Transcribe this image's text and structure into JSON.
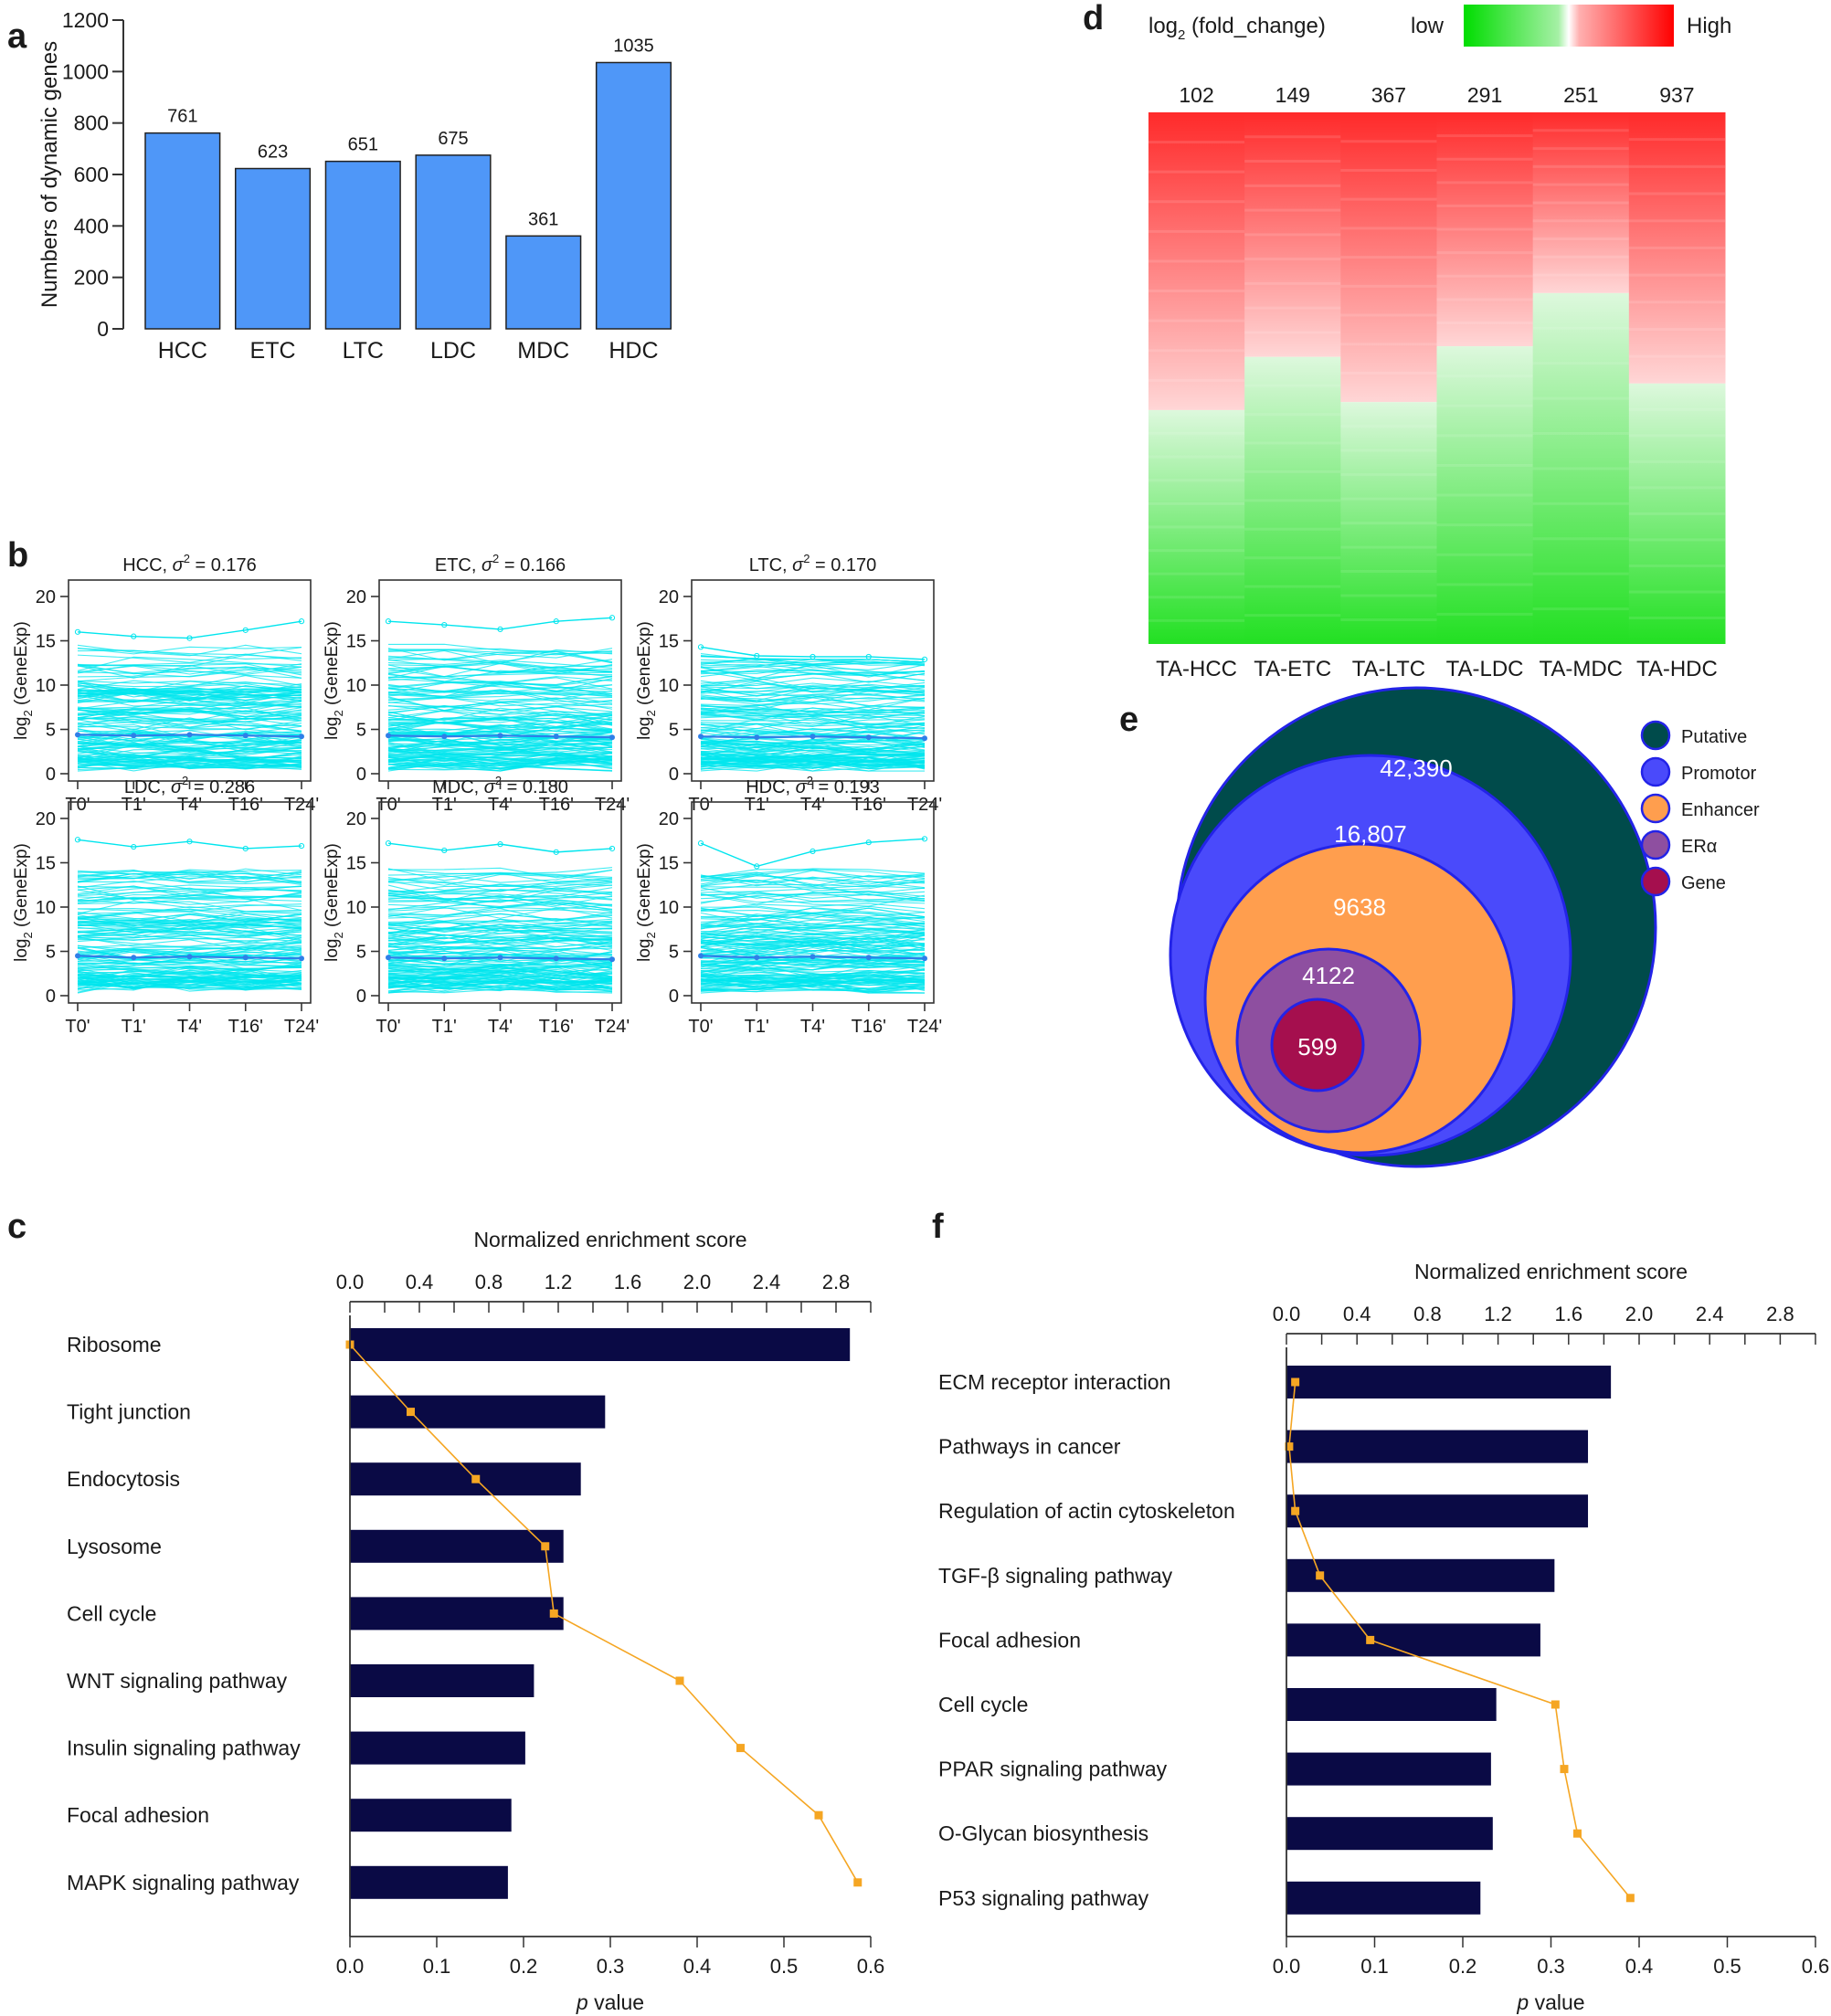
{
  "panel_labels": [
    "a",
    "b",
    "c",
    "d",
    "e",
    "f"
  ],
  "chart_data": [
    {
      "id": "a",
      "type": "bar",
      "ylabel": "Numbers of dynamic genes",
      "categories": [
        "HCC",
        "ETC",
        "LTC",
        "LDC",
        "MDC",
        "HDC"
      ],
      "values": [
        761,
        623,
        651,
        675,
        361,
        1035
      ],
      "ylim": [
        0,
        1200
      ],
      "yticks": [
        0,
        200,
        400,
        600,
        800,
        1000,
        1200
      ],
      "bar_color": "#4F97F8"
    },
    {
      "id": "b",
      "type": "line",
      "x": [
        "T0'",
        "T1'",
        "T4'",
        "T16'",
        "T24'"
      ],
      "ylabel_main": "log",
      "ylabel_sub": "2",
      "ylabel_rest": " (GeneExp)",
      "ylim": [
        0,
        20
      ],
      "yticks": [
        0,
        5,
        10,
        15,
        20
      ],
      "line_color": "#00E5EE",
      "mean_color": "#2F7FE8",
      "panels": [
        {
          "name": "HCC",
          "sigma_label": "σ",
          "sigma_sup": "2",
          "variance": "= 0.176",
          "mean": [
            4.4,
            4.3,
            4.4,
            4.3,
            4.2
          ],
          "max": [
            16.0,
            15.5,
            15.3,
            16.2,
            17.2
          ]
        },
        {
          "name": "ETC",
          "sigma_label": "σ",
          "sigma_sup": "2",
          "variance": "= 0.166",
          "mean": [
            4.3,
            4.2,
            4.3,
            4.2,
            4.1
          ],
          "max": [
            17.2,
            16.8,
            16.3,
            17.2,
            17.6
          ]
        },
        {
          "name": "LTC",
          "sigma_label": "σ",
          "sigma_sup": "2",
          "variance": "= 0.170",
          "mean": [
            4.2,
            4.1,
            4.2,
            4.1,
            4.0
          ],
          "max": [
            14.3,
            13.3,
            13.2,
            13.2,
            12.9
          ]
        },
        {
          "name": "LDC",
          "sigma_label": "σ",
          "sigma_sup": "2",
          "variance": "= 0.286",
          "mean": [
            4.5,
            4.3,
            4.4,
            4.3,
            4.2
          ],
          "max": [
            17.6,
            16.8,
            17.4,
            16.6,
            16.9
          ]
        },
        {
          "name": "MDC",
          "sigma_label": "σ",
          "sigma_sup": "2",
          "variance": "= 0.180",
          "mean": [
            4.3,
            4.2,
            4.3,
            4.2,
            4.1
          ],
          "max": [
            17.2,
            16.4,
            17.1,
            16.2,
            16.6
          ]
        },
        {
          "name": "HDC",
          "sigma_label": "σ",
          "sigma_sup": "2",
          "variance": "= 0.193",
          "mean": [
            4.5,
            4.3,
            4.4,
            4.3,
            4.2
          ],
          "max": [
            17.2,
            14.6,
            16.3,
            17.3,
            17.7
          ]
        }
      ]
    },
    {
      "id": "c",
      "type": "bar",
      "orientation": "horizontal",
      "top_axis_title": "Normalized enrichment score",
      "top_ticks": [
        0.0,
        0.4,
        0.8,
        1.2,
        1.6,
        2.0,
        2.4,
        2.8
      ],
      "top_tick_labels": [
        "0.0",
        "0.4",
        "0.8",
        "1.2",
        "1.6",
        "2.0",
        "2.4",
        "2.8"
      ],
      "top_range": [
        0,
        3.0
      ],
      "bottom_axis_title_p": "p",
      "bottom_axis_title_rest": " value",
      "bottom_ticks": [
        0.0,
        0.1,
        0.2,
        0.3,
        0.4,
        0.5,
        0.6
      ],
      "bottom_tick_labels": [
        "0.0",
        "0.1",
        "0.2",
        "0.3",
        "0.4",
        "0.5",
        "0.6"
      ],
      "bottom_range": [
        0,
        0.6
      ],
      "categories": [
        "Ribosome",
        "Tight junction",
        "Endocytosis",
        "Lysosome",
        "Cell cycle",
        "WNT signaling pathway",
        "Insulin signaling pathway",
        "Focal adhesion",
        "MAPK signaling pathway"
      ],
      "nes": [
        2.88,
        1.47,
        1.33,
        1.23,
        1.23,
        1.06,
        1.01,
        0.93,
        0.91
      ],
      "pvalues": [
        0.0,
        0.07,
        0.145,
        0.225,
        0.235,
        0.38,
        0.45,
        0.54,
        0.585
      ],
      "bar_color": "#0A0A45",
      "line_color": "#F5A623"
    },
    {
      "id": "d",
      "type": "heatmap",
      "legend_title_main": "log",
      "legend_title_sub": "2",
      "legend_title_rest": " (fold_change)",
      "legend_low": "low",
      "legend_high": "High",
      "counts": [
        "102",
        "149",
        "367",
        "291",
        "251",
        "937"
      ],
      "columns": [
        "TA-HCC",
        "TA-ETC",
        "TA-LTC",
        "TA-LDC",
        "TA-MDC",
        "TA-HDC"
      ],
      "up_fraction": [
        0.56,
        0.46,
        0.545,
        0.44,
        0.34,
        0.51
      ],
      "high_color": "#FF1F1F",
      "mid_color": "#FFFFFF",
      "low_color": "#1FE51F"
    },
    {
      "id": "e",
      "type": "nested-circles",
      "levels": [
        {
          "name": "Putative",
          "value": "42,390",
          "color": "#004B4B"
        },
        {
          "name": "Promotor",
          "value": "16,807",
          "color": "#4A4AFB"
        },
        {
          "name": "Enhancer",
          "value": "9638",
          "color": "#FF9E4E"
        },
        {
          "name": "ERα",
          "value": "4122",
          "color": "#8E4FA0"
        },
        {
          "name": "Gene",
          "value": "599",
          "color": "#A50F4E"
        }
      ],
      "border_color": "#2323E8"
    },
    {
      "id": "f",
      "type": "bar",
      "orientation": "horizontal",
      "top_axis_title": "Normalized enrichment score",
      "top_ticks": [
        0.0,
        0.4,
        0.8,
        1.2,
        1.6,
        2.0,
        2.4,
        2.8
      ],
      "top_tick_labels": [
        "0.0",
        "0.4",
        "0.8",
        "1.2",
        "1.6",
        "2.0",
        "2.4",
        "2.8"
      ],
      "top_range": [
        0,
        3.0
      ],
      "bottom_axis_title_p": "p",
      "bottom_axis_title_rest": " value",
      "bottom_ticks": [
        0.0,
        0.1,
        0.2,
        0.3,
        0.4,
        0.5,
        0.6
      ],
      "bottom_tick_labels": [
        "0.0",
        "0.1",
        "0.2",
        "0.3",
        "0.4",
        "0.5",
        "0.6"
      ],
      "bottom_range": [
        0,
        0.6
      ],
      "categories": [
        "ECM receptor interaction",
        "Pathways in cancer",
        "Regulation of actin cytoskeleton",
        "TGF-β signaling pathway",
        "Focal adhesion",
        "Cell cycle",
        "PPAR signaling pathway",
        "O-Glycan biosynthesis",
        "P53 signaling pathway"
      ],
      "nes": [
        1.84,
        1.71,
        1.71,
        1.52,
        1.44,
        1.19,
        1.16,
        1.17,
        1.1
      ],
      "pvalues": [
        0.01,
        0.003,
        0.01,
        0.038,
        0.095,
        0.305,
        0.315,
        0.33,
        0.39
      ],
      "bar_color": "#0A0A45",
      "line_color": "#F5A623"
    }
  ]
}
